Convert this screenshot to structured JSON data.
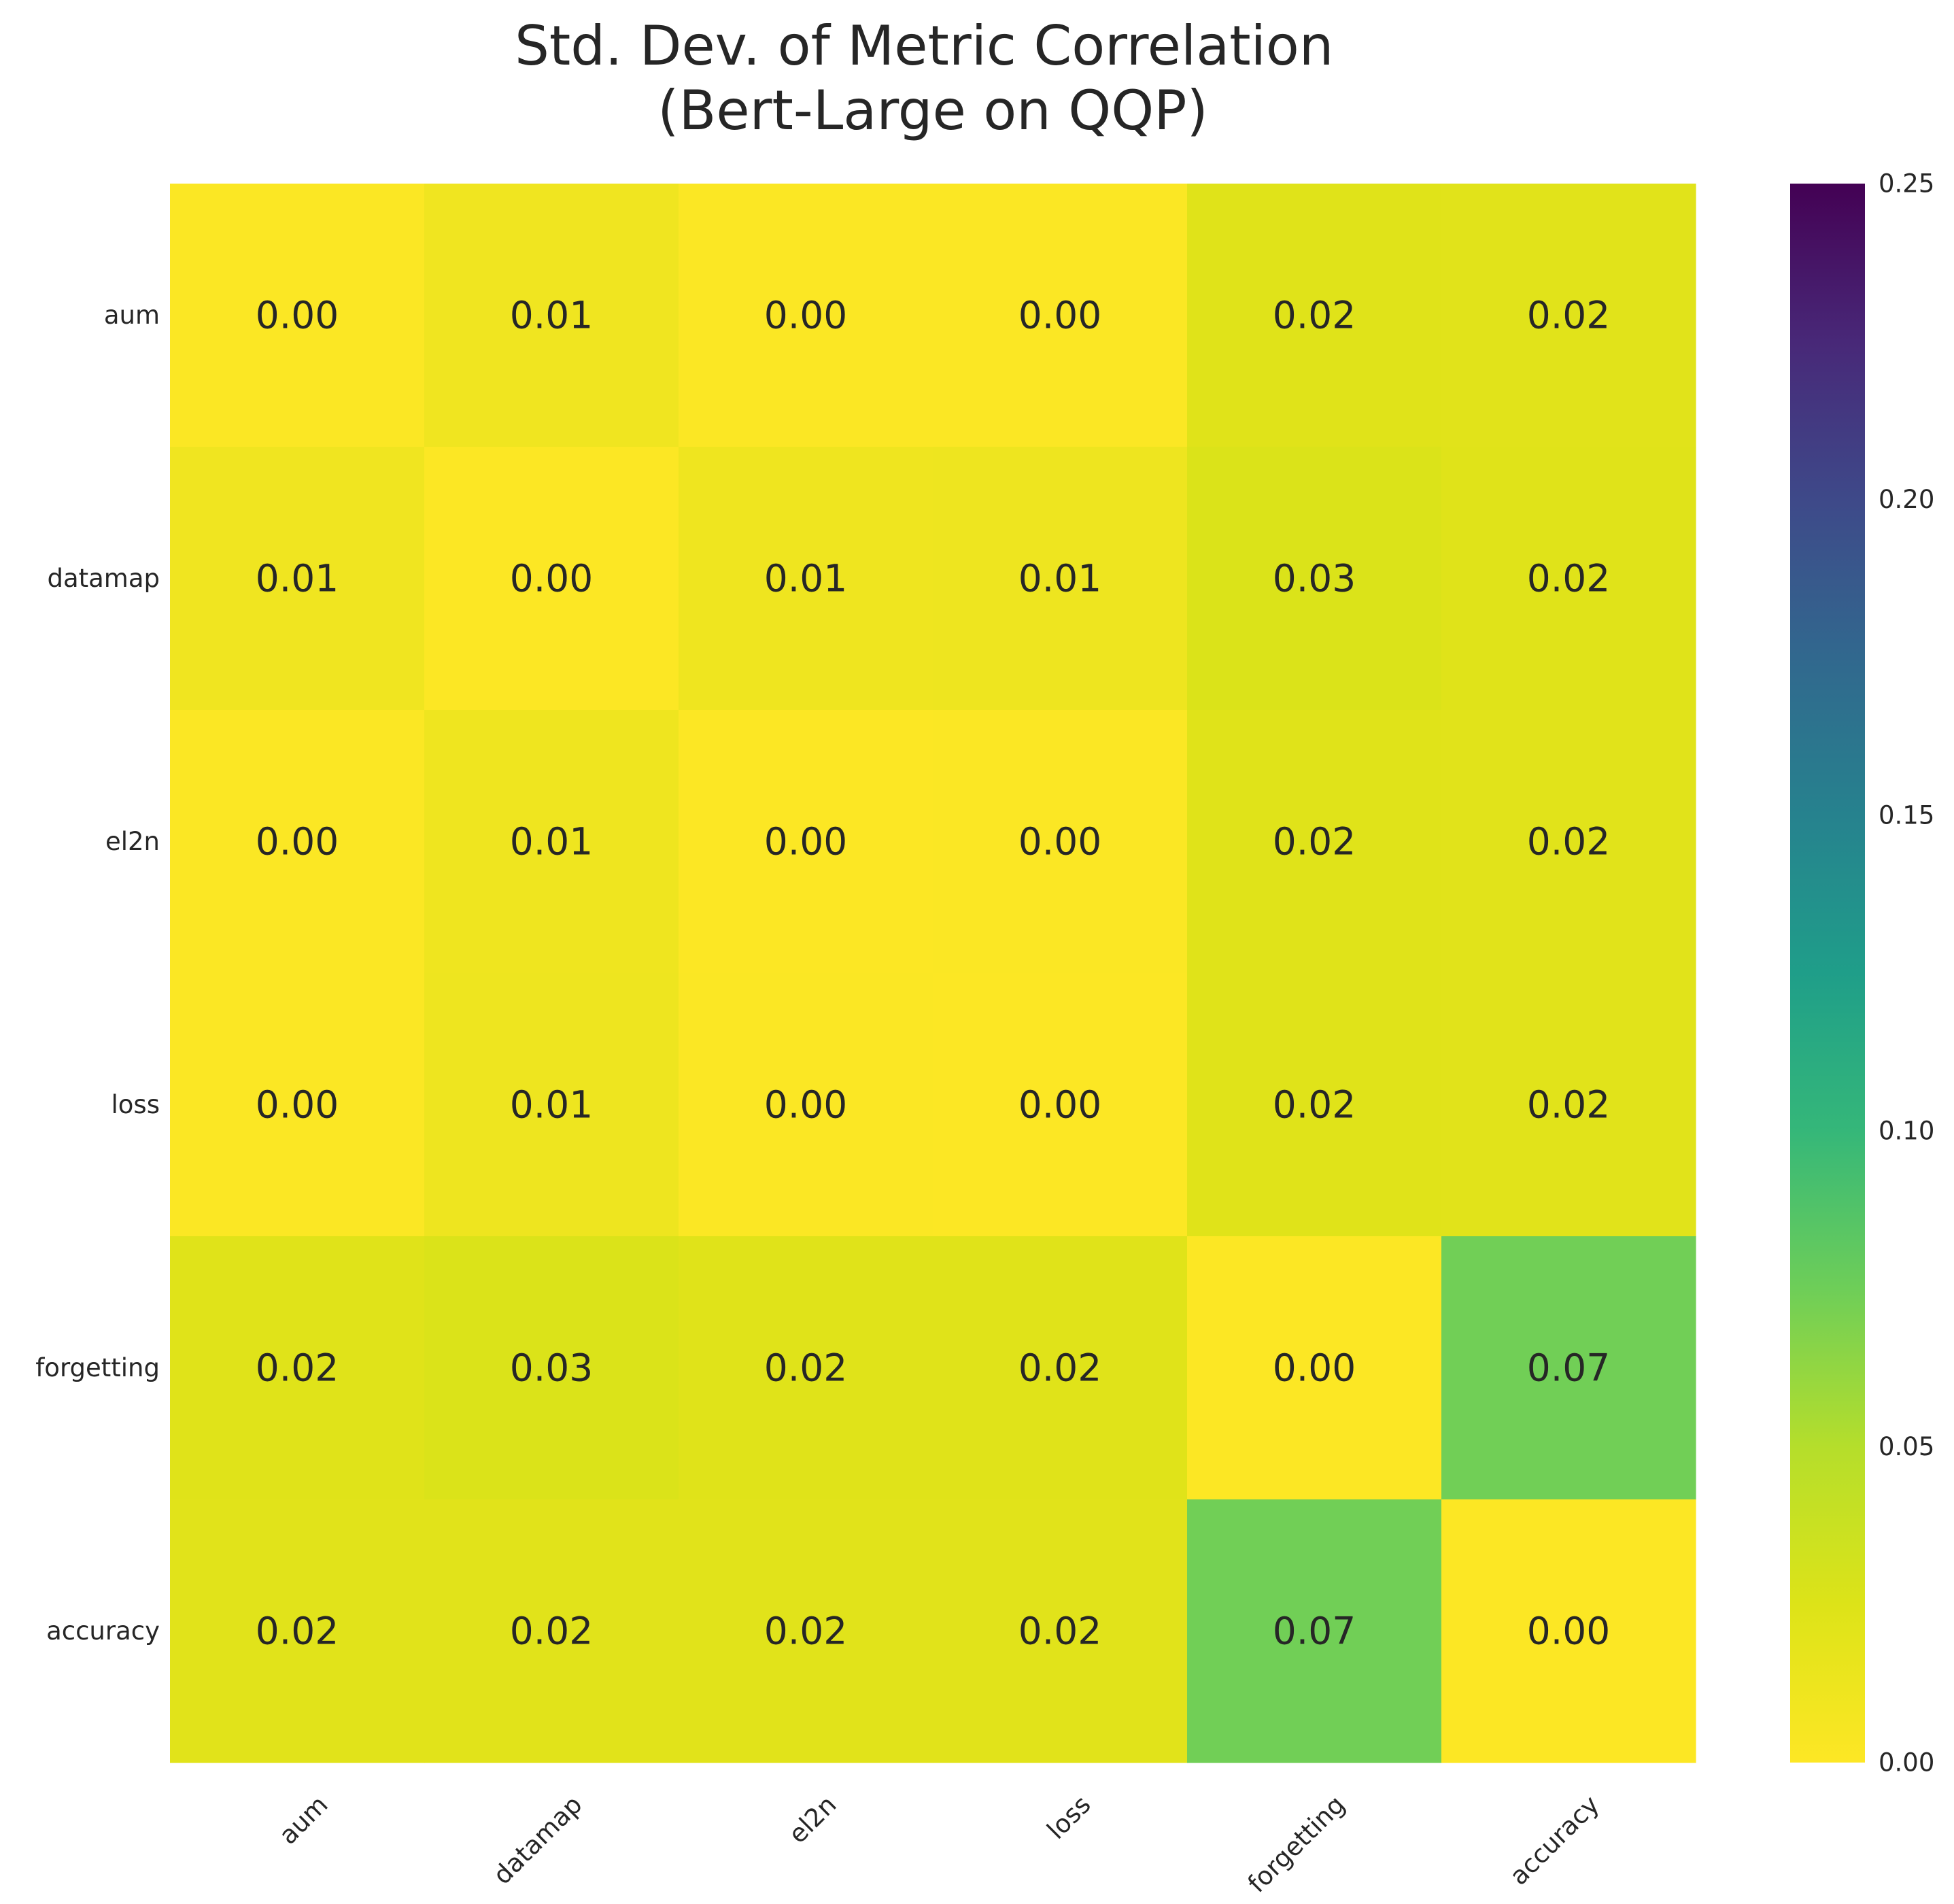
{
  "chart_data": {
    "type": "heatmap",
    "title": "Std. Dev. of Metric Correlation\n(Bert-Large on QQP)",
    "x_labels": [
      "aum",
      "datamap",
      "el2n",
      "loss",
      "forgetting",
      "accuracy"
    ],
    "y_labels": [
      "aum",
      "datamap",
      "el2n",
      "loss",
      "forgetting",
      "accuracy"
    ],
    "values": [
      [
        0.0015,
        0.0105,
        0.0015,
        0.0015,
        0.023,
        0.022
      ],
      [
        0.0105,
        0.001,
        0.011,
        0.012,
        0.026,
        0.023
      ],
      [
        0.0015,
        0.011,
        0.001,
        0.0012,
        0.023,
        0.022
      ],
      [
        0.0015,
        0.0115,
        0.0012,
        0.001,
        0.023,
        0.022
      ],
      [
        0.023,
        0.026,
        0.023,
        0.023,
        0.001,
        0.074
      ],
      [
        0.022,
        0.022,
        0.022,
        0.022,
        0.074,
        0.001
      ]
    ],
    "annotations": [
      [
        "0.00",
        "0.01",
        "0.00",
        "0.00",
        "0.02",
        "0.02"
      ],
      [
        "0.01",
        "0.00",
        "0.01",
        "0.01",
        "0.03",
        "0.02"
      ],
      [
        "0.00",
        "0.01",
        "0.00",
        "0.00",
        "0.02",
        "0.02"
      ],
      [
        "0.00",
        "0.01",
        "0.00",
        "0.00",
        "0.02",
        "0.02"
      ],
      [
        "0.02",
        "0.03",
        "0.02",
        "0.02",
        "0.00",
        "0.07"
      ],
      [
        "0.02",
        "0.02",
        "0.02",
        "0.02",
        "0.07",
        "0.00"
      ]
    ],
    "colormap": "viridis_r",
    "vmin": 0.0,
    "vmax": 0.25,
    "colorbar_ticks": [
      "0.00",
      "0.05",
      "0.10",
      "0.15",
      "0.20",
      "0.25"
    ],
    "grid": false
  }
}
